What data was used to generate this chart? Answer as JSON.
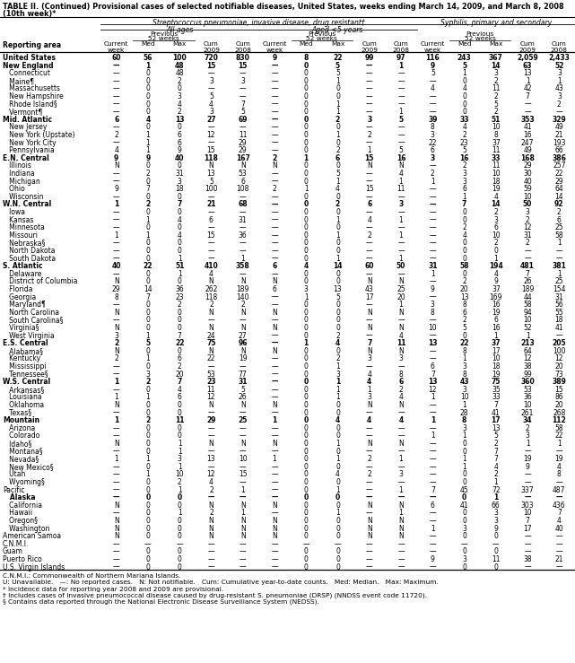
{
  "title_line1": "TABLE II. (Continued) Provisional cases of selected notifiable diseases, United States, weeks ending March 14, 2009, and March 8, 2008",
  "title_line2": "(10th week)*",
  "col_group1": "Streptococcus pneumoniae, invasive disease, drug resistant†",
  "col_subgroup1": "All ages",
  "col_subgroup2": "Aged <5 years",
  "col_subgroup3": "Syphilis, primary and secondary",
  "rows": [
    [
      "United States",
      "60",
      "56",
      "100",
      "720",
      "830",
      "9",
      "8",
      "22",
      "99",
      "97",
      "116",
      "243",
      "367",
      "2,059",
      "2,433"
    ],
    [
      "New England",
      "—",
      "1",
      "48",
      "15",
      "15",
      "—",
      "0",
      "5",
      "—",
      "1",
      "9",
      "5",
      "14",
      "63",
      "52"
    ],
    [
      "   Connecticut",
      "—",
      "0",
      "48",
      "—",
      "—",
      "—",
      "0",
      "5",
      "—",
      "—",
      "5",
      "1",
      "3",
      "13",
      "3"
    ],
    [
      "   Maine¶",
      "—",
      "0",
      "2",
      "3",
      "3",
      "—",
      "0",
      "1",
      "—",
      "—",
      "—",
      "0",
      "2",
      "1",
      "1"
    ],
    [
      "   Massachusetts",
      "—",
      "0",
      "0",
      "—",
      "—",
      "—",
      "0",
      "0",
      "—",
      "—",
      "4",
      "4",
      "11",
      "42",
      "43"
    ],
    [
      "   New Hampshire",
      "—",
      "0",
      "3",
      "5",
      "—",
      "—",
      "0",
      "0",
      "—",
      "—",
      "—",
      "0",
      "2",
      "7",
      "3"
    ],
    [
      "   Rhode Island§",
      "—",
      "0",
      "4",
      "4",
      "7",
      "—",
      "0",
      "1",
      "—",
      "—",
      "—",
      "0",
      "5",
      "—",
      "2"
    ],
    [
      "   Vermont¶",
      "—",
      "0",
      "2",
      "3",
      "5",
      "—",
      "0",
      "1",
      "—",
      "1",
      "—",
      "0",
      "2",
      "—",
      "—"
    ],
    [
      "Mid. Atlantic",
      "6",
      "4",
      "13",
      "27",
      "69",
      "—",
      "0",
      "2",
      "3",
      "5",
      "39",
      "33",
      "51",
      "353",
      "329"
    ],
    [
      "   New Jersey",
      "—",
      "0",
      "0",
      "—",
      "—",
      "—",
      "0",
      "0",
      "—",
      "—",
      "8",
      "4",
      "10",
      "41",
      "49"
    ],
    [
      "   New York (Upstate)",
      "2",
      "1",
      "6",
      "12",
      "11",
      "—",
      "0",
      "1",
      "2",
      "—",
      "3",
      "2",
      "8",
      "16",
      "21"
    ],
    [
      "   New York City",
      "—",
      "1",
      "6",
      "—",
      "29",
      "—",
      "0",
      "0",
      "—",
      "—",
      "22",
      "23",
      "37",
      "247",
      "193"
    ],
    [
      "   Pennsylvania",
      "4",
      "1",
      "9",
      "15",
      "29",
      "—",
      "0",
      "2",
      "1",
      "5",
      "6",
      "5",
      "11",
      "49",
      "66"
    ],
    [
      "E.N. Central",
      "9",
      "9",
      "40",
      "118",
      "167",
      "2",
      "1",
      "6",
      "15",
      "16",
      "3",
      "16",
      "33",
      "168",
      "386"
    ],
    [
      "   Illinois",
      "N",
      "0",
      "0",
      "N",
      "N",
      "N",
      "0",
      "0",
      "N",
      "N",
      "—",
      "2",
      "11",
      "29",
      "257"
    ],
    [
      "   Indiana",
      "—",
      "2",
      "31",
      "13",
      "53",
      "—",
      "0",
      "5",
      "—",
      "4",
      "2",
      "3",
      "10",
      "30",
      "22"
    ],
    [
      "   Michigan",
      "—",
      "0",
      "3",
      "5",
      "6",
      "—",
      "0",
      "1",
      "—",
      "1",
      "1",
      "3",
      "18",
      "40",
      "29"
    ],
    [
      "   Ohio",
      "9",
      "7",
      "18",
      "100",
      "108",
      "2",
      "1",
      "4",
      "15",
      "11",
      "—",
      "6",
      "19",
      "59",
      "64"
    ],
    [
      "   Wisconsin",
      "—",
      "0",
      "0",
      "—",
      "—",
      "—",
      "0",
      "0",
      "—",
      "—",
      "—",
      "1",
      "4",
      "10",
      "14"
    ],
    [
      "W.N. Central",
      "1",
      "2",
      "7",
      "21",
      "68",
      "—",
      "0",
      "2",
      "6",
      "3",
      "—",
      "7",
      "14",
      "50",
      "92"
    ],
    [
      "   Iowa",
      "—",
      "0",
      "0",
      "—",
      "—",
      "—",
      "0",
      "0",
      "—",
      "—",
      "—",
      "0",
      "2",
      "3",
      "2"
    ],
    [
      "   Kansas",
      "—",
      "1",
      "4",
      "6",
      "31",
      "—",
      "0",
      "1",
      "4",
      "1",
      "—",
      "0",
      "3",
      "2",
      "6"
    ],
    [
      "   Minnesota",
      "—",
      "0",
      "0",
      "—",
      "—",
      "—",
      "0",
      "0",
      "—",
      "—",
      "—",
      "2",
      "6",
      "12",
      "25"
    ],
    [
      "   Missouri",
      "1",
      "1",
      "4",
      "15",
      "36",
      "—",
      "0",
      "1",
      "2",
      "1",
      "—",
      "4",
      "10",
      "31",
      "58"
    ],
    [
      "   Nebraska§",
      "—",
      "0",
      "0",
      "—",
      "—",
      "—",
      "0",
      "0",
      "—",
      "—",
      "—",
      "0",
      "2",
      "2",
      "1"
    ],
    [
      "   North Dakota",
      "—",
      "0",
      "0",
      "—",
      "—",
      "—",
      "0",
      "0",
      "—",
      "—",
      "—",
      "0",
      "0",
      "—",
      "—"
    ],
    [
      "   South Dakota",
      "—",
      "0",
      "1",
      "—",
      "1",
      "—",
      "0",
      "1",
      "—",
      "1",
      "—",
      "0",
      "1",
      "—",
      "—"
    ],
    [
      "S. Atlantic",
      "40",
      "22",
      "51",
      "410",
      "358",
      "6",
      "4",
      "14",
      "60",
      "50",
      "31",
      "58",
      "194",
      "481",
      "381"
    ],
    [
      "   Delaware",
      "—",
      "0",
      "1",
      "4",
      "—",
      "—",
      "0",
      "0",
      "—",
      "—",
      "1",
      "0",
      "4",
      "7",
      "1"
    ],
    [
      "   District of Columbia",
      "N",
      "0",
      "0",
      "N",
      "N",
      "N",
      "0",
      "0",
      "N",
      "N",
      "—",
      "2",
      "9",
      "26",
      "25"
    ],
    [
      "   Florida",
      "29",
      "14",
      "36",
      "262",
      "189",
      "6",
      "3",
      "13",
      "43",
      "25",
      "9",
      "20",
      "37",
      "189",
      "154"
    ],
    [
      "   Georgia",
      "8",
      "7",
      "23",
      "118",
      "140",
      "—",
      "1",
      "5",
      "17",
      "20",
      "—",
      "13",
      "169",
      "44",
      "31"
    ],
    [
      "   Maryland¶",
      "—",
      "0",
      "2",
      "2",
      "2",
      "—",
      "0",
      "0",
      "—",
      "1",
      "3",
      "8",
      "16",
      "58",
      "56"
    ],
    [
      "   North Carolina",
      "N",
      "0",
      "0",
      "N",
      "N",
      "N",
      "0",
      "0",
      "N",
      "N",
      "8",
      "6",
      "19",
      "94",
      "55"
    ],
    [
      "   South Carolina§",
      "—",
      "0",
      "0",
      "—",
      "—",
      "—",
      "0",
      "0",
      "—",
      "—",
      "—",
      "2",
      "6",
      "10",
      "18"
    ],
    [
      "   Virginia§",
      "N",
      "0",
      "0",
      "N",
      "N",
      "N",
      "0",
      "0",
      "N",
      "N",
      "10",
      "5",
      "16",
      "52",
      "41"
    ],
    [
      "   West Virginia",
      "3",
      "1",
      "7",
      "24",
      "27",
      "—",
      "0",
      "2",
      "—",
      "4",
      "—",
      "0",
      "1",
      "1",
      "—"
    ],
    [
      "E.S. Central",
      "2",
      "5",
      "22",
      "75",
      "96",
      "—",
      "1",
      "4",
      "7",
      "11",
      "13",
      "22",
      "37",
      "213",
      "205"
    ],
    [
      "   Alabama§",
      "N",
      "0",
      "0",
      "N",
      "N",
      "N",
      "0",
      "0",
      "N",
      "N",
      "—",
      "8",
      "17",
      "64",
      "100"
    ],
    [
      "   Kentucky",
      "2",
      "1",
      "6",
      "22",
      "19",
      "—",
      "0",
      "2",
      "3",
      "3",
      "—",
      "1",
      "10",
      "12",
      "12"
    ],
    [
      "   Mississippi",
      "—",
      "0",
      "2",
      "—",
      "—",
      "—",
      "0",
      "1",
      "—",
      "—",
      "6",
      "3",
      "18",
      "38",
      "20"
    ],
    [
      "   Tennessee§",
      "—",
      "3",
      "20",
      "53",
      "77",
      "—",
      "0",
      "3",
      "4",
      "8",
      "7",
      "8",
      "19",
      "99",
      "73"
    ],
    [
      "W.S. Central",
      "1",
      "2",
      "7",
      "23",
      "31",
      "—",
      "0",
      "1",
      "4",
      "6",
      "13",
      "43",
      "75",
      "360",
      "389"
    ],
    [
      "   Arkansas§",
      "—",
      "0",
      "4",
      "11",
      "5",
      "—",
      "0",
      "1",
      "1",
      "2",
      "12",
      "3",
      "35",
      "53",
      "15"
    ],
    [
      "   Louisiana",
      "1",
      "1",
      "6",
      "12",
      "26",
      "—",
      "0",
      "1",
      "3",
      "4",
      "1",
      "10",
      "33",
      "36",
      "86"
    ],
    [
      "   Oklahoma",
      "N",
      "0",
      "0",
      "N",
      "N",
      "N",
      "0",
      "0",
      "N",
      "N",
      "—",
      "1",
      "7",
      "10",
      "20"
    ],
    [
      "   Texas§",
      "—",
      "0",
      "0",
      "—",
      "—",
      "—",
      "0",
      "0",
      "—",
      "—",
      "—",
      "28",
      "41",
      "261",
      "268"
    ],
    [
      "Mountain",
      "1",
      "2",
      "11",
      "29",
      "25",
      "1",
      "0",
      "4",
      "4",
      "4",
      "1",
      "8",
      "17",
      "34",
      "112"
    ],
    [
      "   Arizona",
      "—",
      "0",
      "0",
      "—",
      "—",
      "—",
      "0",
      "0",
      "—",
      "—",
      "—",
      "3",
      "13",
      "2",
      "58"
    ],
    [
      "   Colorado",
      "—",
      "0",
      "0",
      "—",
      "—",
      "—",
      "0",
      "0",
      "—",
      "—",
      "1",
      "1",
      "5",
      "3",
      "22"
    ],
    [
      "   Idaho§",
      "N",
      "0",
      "1",
      "N",
      "N",
      "N",
      "0",
      "1",
      "N",
      "N",
      "—",
      "0",
      "2",
      "1",
      "1"
    ],
    [
      "   Montana§",
      "—",
      "0",
      "1",
      "—",
      "—",
      "—",
      "0",
      "0",
      "—",
      "—",
      "—",
      "0",
      "7",
      "—",
      "—"
    ],
    [
      "   Nevada§",
      "1",
      "1",
      "3",
      "13",
      "10",
      "1",
      "0",
      "1",
      "2",
      "1",
      "—",
      "1",
      "7",
      "19",
      "19"
    ],
    [
      "   New Mexico§",
      "—",
      "0",
      "1",
      "—",
      "—",
      "—",
      "0",
      "0",
      "—",
      "—",
      "—",
      "1",
      "4",
      "9",
      "4"
    ],
    [
      "   Utah",
      "—",
      "1",
      "10",
      "12",
      "15",
      "—",
      "0",
      "4",
      "2",
      "3",
      "—",
      "0",
      "2",
      "—",
      "8"
    ],
    [
      "   Wyoming§",
      "—",
      "0",
      "2",
      "4",
      "—",
      "—",
      "0",
      "0",
      "—",
      "—",
      "—",
      "0",
      "1",
      "—",
      "—"
    ],
    [
      "Pacific",
      "—",
      "0",
      "1",
      "2",
      "1",
      "—",
      "0",
      "1",
      "—",
      "1",
      "7",
      "45",
      "72",
      "337",
      "487"
    ],
    [
      "   Alaska",
      "—",
      "0",
      "0",
      "—",
      "—",
      "—",
      "0",
      "0",
      "—",
      "—",
      "—",
      "0",
      "1",
      "—",
      "—"
    ],
    [
      "   California",
      "N",
      "0",
      "0",
      "N",
      "N",
      "N",
      "0",
      "0",
      "N",
      "N",
      "6",
      "41",
      "66",
      "303",
      "436"
    ],
    [
      "   Hawaii",
      "—",
      "0",
      "1",
      "2",
      "1",
      "—",
      "0",
      "1",
      "—",
      "1",
      "—",
      "0",
      "3",
      "10",
      "7"
    ],
    [
      "   Oregon§",
      "N",
      "0",
      "0",
      "N",
      "N",
      "N",
      "0",
      "0",
      "N",
      "N",
      "—",
      "0",
      "3",
      "7",
      "4"
    ],
    [
      "   Washington",
      "N",
      "0",
      "0",
      "N",
      "N",
      "N",
      "0",
      "0",
      "N",
      "N",
      "1",
      "3",
      "9",
      "17",
      "40"
    ],
    [
      "American Samoa",
      "N",
      "0",
      "0",
      "N",
      "N",
      "N",
      "0",
      "0",
      "N",
      "N",
      "—",
      "0",
      "0",
      "—",
      "—"
    ],
    [
      "C.N.M.I.",
      "—",
      "—",
      "—",
      "—",
      "—",
      "—",
      "—",
      "—",
      "—",
      "—",
      "—",
      "—",
      "—",
      "—",
      "—"
    ],
    [
      "Guam",
      "—",
      "0",
      "0",
      "—",
      "—",
      "—",
      "0",
      "0",
      "—",
      "—",
      "—",
      "0",
      "0",
      "—",
      "—"
    ],
    [
      "Puerto Rico",
      "—",
      "0",
      "0",
      "—",
      "—",
      "—",
      "0",
      "0",
      "—",
      "—",
      "9",
      "3",
      "11",
      "38",
      "21"
    ],
    [
      "U.S. Virgin Islands",
      "—",
      "0",
      "0",
      "—",
      "—",
      "—",
      "0",
      "0",
      "—",
      "—",
      "—",
      "0",
      "0",
      "—",
      "—"
    ]
  ],
  "bold_rows": [
    0,
    1,
    8,
    13,
    19,
    27,
    37,
    42,
    47,
    57
  ],
  "footnotes": [
    "C.N.M.I.: Commonwealth of Northern Mariana Islands.",
    "U: Unavailable.   —: No reported cases.   N: Not notifiable.   Cum: Cumulative year-to-date counts.   Med: Median.   Max: Maximum.",
    "* Incidence data for reporting year 2008 and 2009 are provisional.",
    "† Includes cases of invasive pneumococcal disease caused by drug-resistant S. pneumoniae (DRSP) (NNDSS event code 11720).",
    "§ Contains data reported through the National Electronic Disease Surveillance System (NEDSS)."
  ]
}
